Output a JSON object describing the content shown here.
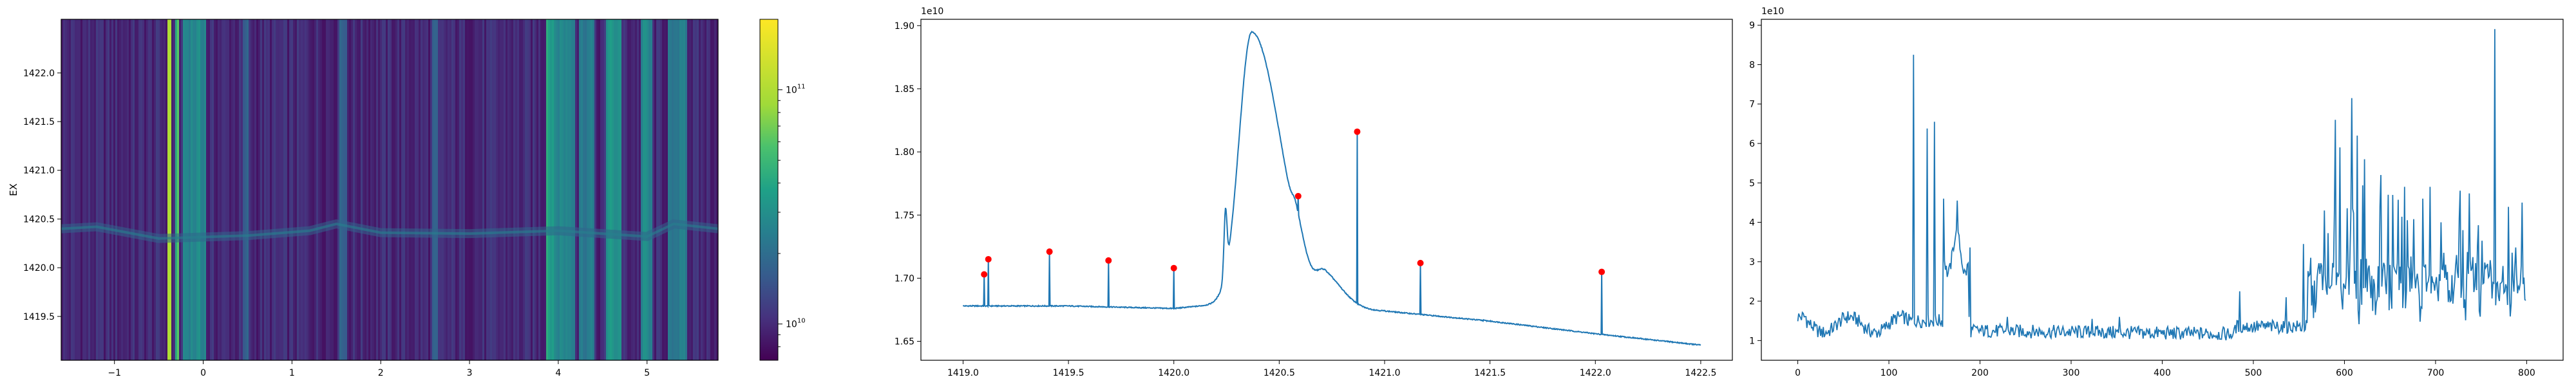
{
  "chart_data": [
    {
      "type": "heatmap",
      "title": "",
      "xlabel": "",
      "ylabel": "EX",
      "x_range": [
        -1.6,
        5.8
      ],
      "y_range": [
        1419.05,
        1422.55
      ],
      "xticks": [
        -1,
        0,
        1,
        2,
        3,
        4,
        5
      ],
      "yticks": [
        1419.5,
        1420.0,
        1420.5,
        1421.0,
        1421.5,
        1422.0
      ],
      "ytick_labels": [
        "1419.5",
        "1420.0",
        "1420.5",
        "1421.0",
        "1421.5",
        "1422.0"
      ],
      "colormap": "viridis",
      "colorbar": {
        "scale": "log",
        "range": [
          7000000000,
          200000000000
        ],
        "tick_labels": [
          {
            "value": 10000000000,
            "base": "10",
            "exp": "10"
          },
          {
            "value": 100000000000,
            "base": "10",
            "exp": "11"
          }
        ]
      },
      "bright_columns": [
        {
          "x0": -0.4,
          "x1": -0.37,
          "level": 0.8
        },
        {
          "x0": -0.3,
          "x1": -0.28,
          "level": 0.65
        },
        {
          "x0": -0.22,
          "x1": 0.02,
          "level": 0.45
        },
        {
          "x0": 0.45,
          "x1": 0.5,
          "level": 0.3
        },
        {
          "x0": 1.55,
          "x1": 1.6,
          "level": 0.3
        },
        {
          "x0": 2.6,
          "x1": 2.64,
          "level": 0.3
        },
        {
          "x0": 3.88,
          "x1": 3.93,
          "level": 0.55
        },
        {
          "x0": 3.95,
          "x1": 4.18,
          "level": 0.45
        },
        {
          "x0": 4.25,
          "x1": 4.4,
          "level": 0.4
        },
        {
          "x0": 4.55,
          "x1": 4.7,
          "level": 0.5
        },
        {
          "x0": 4.95,
          "x1": 5.05,
          "level": 0.45
        },
        {
          "x0": 5.25,
          "x1": 5.45,
          "level": 0.4
        }
      ],
      "grid": false
    },
    {
      "type": "line",
      "title": "",
      "xlabel": "",
      "ylabel": "",
      "offset_label": "1e10",
      "xlim": [
        1418.8,
        1422.65
      ],
      "ylim": [
        16.35,
        19.05
      ],
      "xticks": [
        1419.0,
        1419.5,
        1420.0,
        1420.5,
        1421.0,
        1421.5,
        1422.0,
        1422.5
      ],
      "xtick_labels": [
        "1419.0",
        "1419.5",
        "1420.0",
        "1420.5",
        "1421.0",
        "1421.5",
        "1422.0",
        "1422.5"
      ],
      "yticks": [
        16.5,
        17.0,
        17.5,
        18.0,
        18.5,
        19.0
      ],
      "ytick_labels": [
        "1.65",
        "1.70",
        "1.75",
        "1.80",
        "1.85",
        "1.90"
      ],
      "baseline": [
        [
          1419.0,
          16.78
        ],
        [
          1419.5,
          16.78
        ],
        [
          1420.0,
          16.76
        ],
        [
          1420.25,
          16.8
        ],
        [
          1420.8,
          16.75
        ],
        [
          1421.0,
          16.74
        ],
        [
          1421.5,
          16.66
        ],
        [
          1422.0,
          16.56
        ],
        [
          1422.5,
          16.47
        ]
      ],
      "peaks": [
        {
          "x": 1420.37,
          "height": 2.16,
          "width": 0.11
        },
        {
          "x": 1420.72,
          "height": 0.22,
          "width": 0.07
        },
        {
          "x": 1420.58,
          "height": 0.15,
          "width": 0.03
        }
      ],
      "spikes": [
        {
          "x": 1419.1,
          "y": 17.03
        },
        {
          "x": 1419.12,
          "y": 17.15
        },
        {
          "x": 1419.41,
          "y": 17.21
        },
        {
          "x": 1419.69,
          "y": 17.14
        },
        {
          "x": 1420.0,
          "y": 17.08
        },
        {
          "x": 1420.59,
          "y": 17.65
        },
        {
          "x": 1420.87,
          "y": 18.16
        },
        {
          "x": 1421.17,
          "y": 17.12
        },
        {
          "x": 1421.47,
          "y": 16.67
        },
        {
          "x": 1421.75,
          "y": 16.61
        },
        {
          "x": 1422.03,
          "y": 17.05
        }
      ],
      "peak_markers_x": [
        1419.1,
        1419.12,
        1419.41,
        1419.69,
        1420.0,
        1420.59,
        1420.87,
        1421.17,
        1422.03
      ],
      "line_color": "#1f77b4",
      "marker_color": "#ff0000",
      "grid": false
    },
    {
      "type": "line",
      "title": "",
      "xlabel": "",
      "ylabel": "",
      "offset_label": "1e10",
      "xlim": [
        -40,
        840
      ],
      "ylim": [
        0.5,
        9.15
      ],
      "xticks": [
        0,
        100,
        200,
        300,
        400,
        500,
        600,
        700,
        800
      ],
      "yticks": [
        1,
        2,
        3,
        4,
        5,
        6,
        7,
        8,
        9
      ],
      "n_points": 800,
      "spikes": [
        {
          "x": 127,
          "y": 8.25
        },
        {
          "x": 142,
          "y": 6.38
        },
        {
          "x": 150,
          "y": 6.55
        },
        {
          "x": 160,
          "y": 4.6
        },
        {
          "x": 175,
          "y": 4.55
        },
        {
          "x": 188,
          "y": 1.6
        },
        {
          "x": 230,
          "y": 1.6
        },
        {
          "x": 323,
          "y": 1.55
        },
        {
          "x": 353,
          "y": 1.6
        },
        {
          "x": 485,
          "y": 2.25
        },
        {
          "x": 536,
          "y": 2.1
        },
        {
          "x": 555,
          "y": 3.45
        },
        {
          "x": 563,
          "y": 3.1
        },
        {
          "x": 578,
          "y": 4.3
        },
        {
          "x": 590,
          "y": 6.6
        },
        {
          "x": 595,
          "y": 5.9
        },
        {
          "x": 608,
          "y": 7.15
        },
        {
          "x": 614,
          "y": 6.2
        },
        {
          "x": 622,
          "y": 5.6
        },
        {
          "x": 640,
          "y": 5.2
        },
        {
          "x": 648,
          "y": 4.7
        },
        {
          "x": 666,
          "y": 4.9
        },
        {
          "x": 686,
          "y": 4.6
        },
        {
          "x": 694,
          "y": 4.9
        },
        {
          "x": 706,
          "y": 4.0
        },
        {
          "x": 726,
          "y": 4.1
        },
        {
          "x": 746,
          "y": 3.4
        },
        {
          "x": 758,
          "y": 2.6
        },
        {
          "x": 765,
          "y": 8.9
        },
        {
          "x": 773,
          "y": 2.5
        },
        {
          "x": 781,
          "y": 2.3
        },
        {
          "x": 795,
          "y": 4.5
        }
      ],
      "line_color": "#1f77b4",
      "grid": false
    }
  ]
}
